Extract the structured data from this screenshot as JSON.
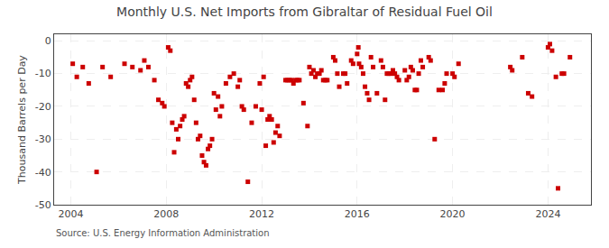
{
  "chart_data": {
    "type": "scatter",
    "title": "Monthly U.S. Net Imports from Gibraltar of Residual Fuel Oil",
    "ylabel": "Thousand Barrels per Day",
    "annotations": [
      "Source: U.S. Energy Information Administration"
    ],
    "color": "#cc0000",
    "marker": "square",
    "grid": true,
    "xlim": [
      2003.3,
      2025.8
    ],
    "xticks": [
      2004,
      2008,
      2012,
      2016,
      2020,
      2024
    ],
    "ylim": [
      -50,
      2
    ],
    "yticks": [
      0,
      -10,
      -20,
      -30,
      -40,
      -50
    ],
    "x": [
      2004.08,
      2004.25,
      2004.5,
      2004.75,
      2005.08,
      2005.33,
      2005.67,
      2006.25,
      2006.58,
      2006.92,
      2007.08,
      2007.25,
      2007.5,
      2007.67,
      2007.83,
      2007.92,
      2008.08,
      2008.17,
      2008.25,
      2008.33,
      2008.42,
      2008.5,
      2008.58,
      2008.67,
      2008.75,
      2008.83,
      2008.92,
      2009.0,
      2009.08,
      2009.17,
      2009.25,
      2009.33,
      2009.42,
      2009.5,
      2009.58,
      2009.67,
      2009.75,
      2009.83,
      2009.92,
      2010.0,
      2010.08,
      2010.17,
      2010.25,
      2010.33,
      2010.5,
      2010.67,
      2010.83,
      2011.0,
      2011.08,
      2011.17,
      2011.25,
      2011.42,
      2011.58,
      2011.75,
      2011.92,
      2012.0,
      2012.08,
      2012.17,
      2012.25,
      2012.33,
      2012.42,
      2012.5,
      2012.58,
      2012.67,
      2012.75,
      2013.0,
      2013.08,
      2013.17,
      2013.25,
      2013.33,
      2013.42,
      2013.5,
      2013.58,
      2013.75,
      2013.92,
      2014.0,
      2014.08,
      2014.17,
      2014.25,
      2014.33,
      2014.42,
      2014.5,
      2014.58,
      2014.67,
      2014.75,
      2015.0,
      2015.08,
      2015.17,
      2015.25,
      2015.42,
      2015.5,
      2015.58,
      2015.75,
      2015.83,
      2016.0,
      2016.05,
      2016.08,
      2016.17,
      2016.25,
      2016.33,
      2016.42,
      2016.5,
      2016.58,
      2016.67,
      2016.83,
      2017.0,
      2017.08,
      2017.17,
      2017.25,
      2017.33,
      2017.42,
      2017.5,
      2017.58,
      2017.67,
      2017.75,
      2018.0,
      2018.08,
      2018.17,
      2018.25,
      2018.33,
      2018.42,
      2018.5,
      2018.58,
      2018.67,
      2018.75,
      2019.0,
      2019.08,
      2019.25,
      2019.42,
      2019.58,
      2019.67,
      2019.75,
      2020.0,
      2020.08,
      2020.25,
      2022.42,
      2022.5,
      2022.92,
      2023.17,
      2023.33,
      2024.0,
      2024.08,
      2024.17,
      2024.33,
      2024.42,
      2024.58,
      2024.67,
      2024.92
    ],
    "values": [
      -7,
      -11,
      -8,
      -13,
      -40,
      -8,
      -11,
      -7,
      -8,
      -9,
      -6,
      -8,
      -12,
      -18,
      -19,
      -20,
      -2,
      -3,
      -25,
      -34,
      -27,
      -30,
      -26,
      -24,
      -23,
      -13,
      -14,
      -12,
      -11,
      -18,
      -25,
      -30,
      -29,
      -35,
      -37,
      -38,
      -33,
      -32,
      -30,
      -16,
      -21,
      -17,
      -23,
      -20,
      -13,
      -11,
      -10,
      -14,
      -12,
      -20,
      -21,
      -43,
      -25,
      -20,
      -13,
      -21,
      -11,
      -32,
      -24,
      -23,
      -24,
      -31,
      -28,
      -26,
      -29,
      -12,
      -12,
      -12,
      -12,
      -13,
      -12,
      -12,
      -12,
      -19,
      -26,
      -8,
      -10,
      -9,
      -11,
      -10,
      -10,
      -9,
      -12,
      -12,
      -12,
      -5,
      -6,
      -10,
      -14,
      -10,
      -10,
      -13,
      -6,
      -7,
      -4,
      -2,
      -7,
      -8,
      -10,
      -14,
      -16,
      -18,
      -5,
      -8,
      -16,
      -6,
      -8,
      -18,
      -10,
      -10,
      -10,
      -9,
      -10,
      -11,
      -12,
      -9,
      -12,
      -11,
      -8,
      -9,
      -15,
      -15,
      -10,
      -6,
      -8,
      -5,
      -6,
      -30,
      -15,
      -15,
      -13,
      -10,
      -10,
      -11,
      -7,
      -8,
      -9,
      -5,
      -16,
      -17,
      -2,
      -1,
      -3,
      -11,
      -45,
      -10,
      -10,
      -5
    ]
  }
}
